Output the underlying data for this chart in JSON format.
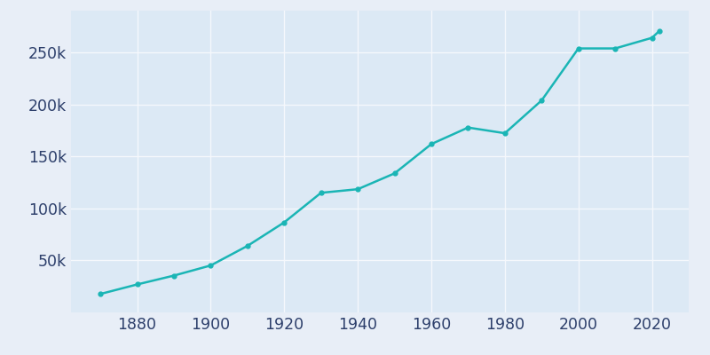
{
  "years": [
    1870,
    1880,
    1890,
    1900,
    1910,
    1920,
    1930,
    1940,
    1950,
    1960,
    1970,
    1980,
    1990,
    2000,
    2010,
    2020,
    2022
  ],
  "population": [
    17718,
    26880,
    35393,
    45115,
    63933,
    86549,
    114946,
    118410,
    133607,
    161776,
    177671,
    172196,
    203741,
    253691,
    253691,
    263886,
    270402
  ],
  "line_color": "#1ab5b5",
  "marker": "o",
  "marker_size": 3.5,
  "line_width": 1.8,
  "plot_bg_color": "#dce9f5",
  "figure_bg_color": "#e8eef7",
  "grid_color": "#f5f8fc",
  "tick_color": "#2d3f6b",
  "xlim": [
    1862,
    2030
  ],
  "ylim": [
    0,
    290000
  ],
  "yticks": [
    50000,
    100000,
    150000,
    200000,
    250000
  ],
  "ytick_labels": [
    "50k",
    "100k",
    "150k",
    "200k",
    "250k"
  ],
  "xticks": [
    1880,
    1900,
    1920,
    1940,
    1960,
    1980,
    2000,
    2020
  ],
  "tick_fontsize": 12.5
}
